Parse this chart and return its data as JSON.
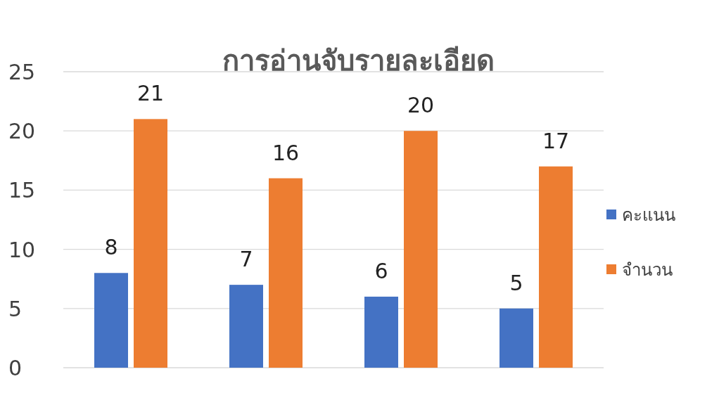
{
  "chart_data": {
    "type": "bar",
    "title": "การอ่านจับรายละเอียด",
    "categories": [
      null,
      null,
      null,
      null
    ],
    "series": [
      {
        "name": "คะแนน",
        "color": "#4472c4",
        "values": [
          8,
          7,
          6,
          5
        ]
      },
      {
        "name": "จำนวน",
        "color": "#ed7d31",
        "values": [
          21,
          16,
          20,
          17
        ]
      }
    ],
    "ylim": [
      0,
      25
    ],
    "yticks": [
      0,
      5,
      10,
      15,
      20,
      25
    ],
    "grid": "y",
    "legend": "right",
    "data_labels": true
  }
}
